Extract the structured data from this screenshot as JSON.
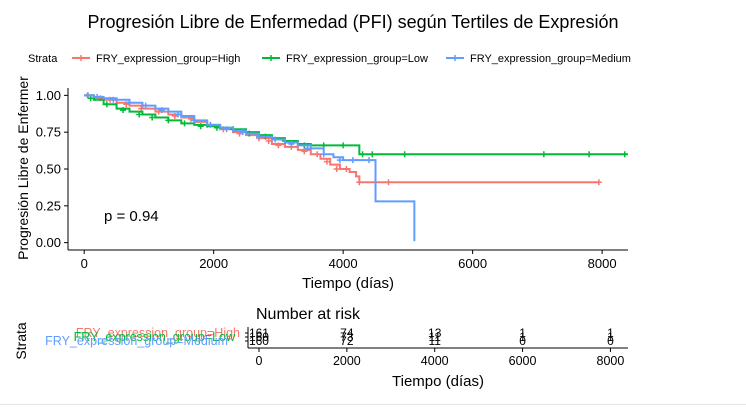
{
  "chart_data": {
    "type": "line",
    "title": "Progresión Libre de Enfermedad (PFI) según Tertiles de Expresión",
    "xlabel": "Tiempo (días)",
    "ylabel": "Progresión Libre de Enfermer",
    "xlim": [
      -250,
      8400
    ],
    "ylim": [
      -0.05,
      1.05
    ],
    "x_ticks": [
      0,
      2000,
      4000,
      6000,
      8000
    ],
    "y_ticks": [
      0.0,
      0.25,
      0.5,
      0.75,
      1.0
    ],
    "y_tick_labels": [
      "0.00",
      "0.25",
      "0.50",
      "0.75",
      "1.00"
    ],
    "grid": false,
    "legend_title": "Strata",
    "legend_position": "top",
    "annotation": "p = 0.94",
    "colors": {
      "High": "#F8766D",
      "Low": "#00BA38",
      "Medium": "#619CFF"
    },
    "series": [
      {
        "name": "FRY_expression_group=High",
        "color": "#F8766D",
        "x": [
          0,
          150,
          300,
          500,
          700,
          900,
          1100,
          1300,
          1500,
          1700,
          1900,
          2100,
          2300,
          2500,
          2700,
          2900,
          3100,
          3300,
          3500,
          3650,
          3800,
          3950,
          4100,
          4200,
          4250,
          7950
        ],
        "y": [
          1.0,
          0.98,
          0.97,
          0.95,
          0.93,
          0.91,
          0.89,
          0.87,
          0.85,
          0.82,
          0.8,
          0.77,
          0.75,
          0.73,
          0.71,
          0.67,
          0.65,
          0.63,
          0.6,
          0.57,
          0.53,
          0.5,
          0.48,
          0.45,
          0.41,
          0.41
        ],
        "censor_x": [
          60,
          250,
          400,
          650,
          880,
          1150,
          1400,
          1650,
          1900,
          2150,
          2400,
          2700,
          2850,
          3000,
          3200,
          3400,
          3600,
          3750,
          3900,
          4050,
          4250,
          4500,
          4700,
          7950
        ],
        "censor_y": [
          1.0,
          0.98,
          0.97,
          0.94,
          0.91,
          0.89,
          0.86,
          0.84,
          0.8,
          0.77,
          0.74,
          0.71,
          0.69,
          0.66,
          0.65,
          0.62,
          0.6,
          0.55,
          0.5,
          0.5,
          0.41,
          0.41,
          0.41,
          0.41
        ]
      },
      {
        "name": "FRY_expression_group=Low",
        "color": "#00BA38",
        "x": [
          0,
          150,
          300,
          500,
          700,
          900,
          1100,
          1300,
          1500,
          1700,
          1900,
          2100,
          2300,
          2500,
          2700,
          2900,
          3100,
          3300,
          3500,
          3700,
          4000,
          4250,
          8400
        ],
        "y": [
          1.0,
          0.97,
          0.94,
          0.91,
          0.89,
          0.87,
          0.85,
          0.83,
          0.81,
          0.8,
          0.79,
          0.78,
          0.77,
          0.75,
          0.73,
          0.71,
          0.69,
          0.67,
          0.66,
          0.66,
          0.66,
          0.6,
          0.6
        ],
        "censor_x": [
          100,
          350,
          600,
          850,
          1050,
          1300,
          1550,
          1800,
          2050,
          2300,
          2550,
          2800,
          3100,
          3400,
          3700,
          4000,
          4300,
          4450,
          4950,
          7100,
          7800,
          8350
        ],
        "censor_y": [
          0.98,
          0.94,
          0.9,
          0.87,
          0.85,
          0.83,
          0.81,
          0.79,
          0.78,
          0.77,
          0.74,
          0.72,
          0.69,
          0.66,
          0.66,
          0.66,
          0.6,
          0.6,
          0.6,
          0.6,
          0.6,
          0.6
        ]
      },
      {
        "name": "FRY_expression_group=Medium",
        "color": "#619CFF",
        "x": [
          0,
          150,
          300,
          500,
          700,
          900,
          1100,
          1300,
          1500,
          1700,
          1900,
          2100,
          2300,
          2500,
          2700,
          2900,
          3100,
          3300,
          3500,
          3700,
          3850,
          4000,
          4300,
          4500,
          5100,
          5100
        ],
        "y": [
          1.0,
          0.99,
          0.98,
          0.97,
          0.95,
          0.93,
          0.91,
          0.89,
          0.86,
          0.83,
          0.8,
          0.78,
          0.76,
          0.74,
          0.72,
          0.7,
          0.68,
          0.66,
          0.64,
          0.6,
          0.58,
          0.56,
          0.56,
          0.28,
          0.28,
          0.01
        ],
        "censor_x": [
          50,
          200,
          450,
          700,
          950,
          1200,
          1450,
          1700,
          1950,
          2200,
          2450,
          2700,
          2950,
          3200,
          3450,
          3700,
          3950,
          4150,
          4400
        ],
        "censor_y": [
          1.0,
          0.99,
          0.97,
          0.95,
          0.93,
          0.9,
          0.87,
          0.83,
          0.8,
          0.77,
          0.75,
          0.72,
          0.7,
          0.67,
          0.64,
          0.6,
          0.56,
          0.56,
          0.56
        ]
      }
    ],
    "risk_table": {
      "title": "Number at risk",
      "ylabel": "Strata",
      "xlabel": "Tiempo (días)",
      "x_ticks": [
        0,
        2000,
        4000,
        6000,
        8000
      ],
      "rows": [
        {
          "label": "FRY_expression_group=High",
          "color": "#F8766D",
          "values": [
            "161",
            "74",
            "13",
            "1",
            "1"
          ]
        },
        {
          "label": "FRY_expression_group=Low",
          "color": "#00BA38",
          "values": [
            "160",
            "73",
            "11",
            "1",
            "1"
          ]
        },
        {
          "label": "FRY_expression_group=Medium",
          "color": "#619CFF",
          "values": [
            "160",
            "72",
            "11",
            "0",
            "0"
          ]
        }
      ]
    }
  }
}
